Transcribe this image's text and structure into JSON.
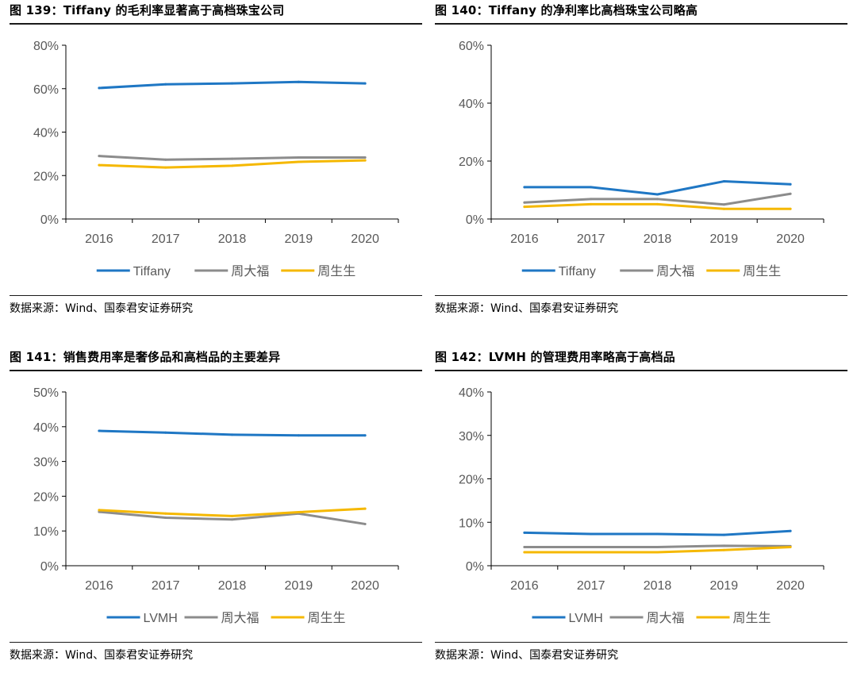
{
  "colors": {
    "tiffany": "#1f77c4",
    "lvmh": "#1f77c4",
    "chow_tai_fook": "#8c8c8c",
    "chow_sang_sang": "#f5b800",
    "axis": "#000000",
    "tick_text": "#595959"
  },
  "chart_data": [
    {
      "type": "line",
      "title": "图 139：Tiffany 的毛利率显著高于高档珠宝公司",
      "source": "数据来源：Wind、国泰君安证券研究",
      "x": [
        "2016",
        "2017",
        "2018",
        "2019",
        "2020"
      ],
      "ylim": [
        0,
        80
      ],
      "yticks": [
        0,
        20,
        40,
        60,
        80
      ],
      "ytick_labels": [
        "0%",
        "20%",
        "40%",
        "60%",
        "80%"
      ],
      "grid": false,
      "legend_position": "bottom",
      "series": [
        {
          "name": "Tiffany",
          "color": "#1f77c4",
          "values": [
            60.3,
            62.0,
            62.4,
            63.1,
            62.4
          ]
        },
        {
          "name": "周大福",
          "color": "#8c8c8c",
          "values": [
            29.0,
            27.3,
            27.7,
            28.3,
            28.3
          ]
        },
        {
          "name": "周生生",
          "color": "#f5b800",
          "values": [
            24.8,
            23.7,
            24.5,
            26.3,
            27.0
          ]
        }
      ]
    },
    {
      "type": "line",
      "title": "图 140：Tiffany 的净利率比高档珠宝公司略高",
      "source": "数据来源：Wind、国泰君安证券研究",
      "x": [
        "2016",
        "2017",
        "2018",
        "2019",
        "2020"
      ],
      "ylim": [
        0,
        60
      ],
      "yticks": [
        0,
        20,
        40,
        60
      ],
      "ytick_labels": [
        "0%",
        "20%",
        "40%",
        "60%"
      ],
      "grid": false,
      "legend_position": "bottom",
      "series": [
        {
          "name": "Tiffany",
          "color": "#1f77c4",
          "values": [
            11.0,
            11.0,
            8.5,
            13.0,
            12.0
          ]
        },
        {
          "name": "周大福",
          "color": "#8c8c8c",
          "values": [
            5.7,
            6.9,
            6.9,
            5.0,
            8.7
          ]
        },
        {
          "name": "周生生",
          "color": "#f5b800",
          "values": [
            4.2,
            5.1,
            5.1,
            3.5,
            3.5
          ]
        }
      ]
    },
    {
      "type": "line",
      "title": "图 141：销售费用率是奢侈品和高档品的主要差异",
      "source": "数据来源：Wind、国泰君安证券研究",
      "x": [
        "2016",
        "2017",
        "2018",
        "2019",
        "2020"
      ],
      "ylim": [
        0,
        50
      ],
      "yticks": [
        0,
        10,
        20,
        30,
        40,
        50
      ],
      "ytick_labels": [
        "0%",
        "10%",
        "20%",
        "30%",
        "40%",
        "50%"
      ],
      "grid": false,
      "legend_position": "bottom",
      "series": [
        {
          "name": "LVMH",
          "color": "#1f77c4",
          "values": [
            38.8,
            38.3,
            37.7,
            37.5,
            37.5
          ]
        },
        {
          "name": "周大福",
          "color": "#8c8c8c",
          "values": [
            15.5,
            13.8,
            13.3,
            15.0,
            12.0
          ]
        },
        {
          "name": "周生生",
          "color": "#f5b800",
          "values": [
            16.0,
            15.0,
            14.3,
            15.4,
            16.4
          ]
        }
      ]
    },
    {
      "type": "line",
      "title": "图 142：LVMH 的管理费用率略高于高档品",
      "source": "数据来源：Wind、国泰君安证券研究",
      "x": [
        "2016",
        "2017",
        "2018",
        "2019",
        "2020"
      ],
      "ylim": [
        0,
        40
      ],
      "yticks": [
        0,
        10,
        20,
        30,
        40
      ],
      "ytick_labels": [
        "0%",
        "10%",
        "20%",
        "30%",
        "40%"
      ],
      "grid": false,
      "legend_position": "bottom",
      "series": [
        {
          "name": "LVMH",
          "color": "#1f77c4",
          "values": [
            7.6,
            7.3,
            7.3,
            7.1,
            8.0
          ]
        },
        {
          "name": "周大福",
          "color": "#8c8c8c",
          "values": [
            4.3,
            4.3,
            4.3,
            4.6,
            4.5
          ]
        },
        {
          "name": "周生生",
          "color": "#f5b800",
          "values": [
            3.1,
            3.1,
            3.1,
            3.6,
            4.3
          ]
        }
      ]
    }
  ]
}
